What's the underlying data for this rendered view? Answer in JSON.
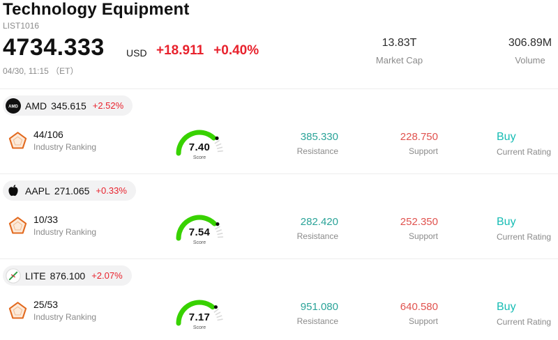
{
  "colors": {
    "red": "#e8222d",
    "support_red": "#e0524e",
    "resistance_teal": "#2aa398",
    "buy_teal": "#16bcb4",
    "gauge_green": "#38d200",
    "pentagon_orange": "#e2691e",
    "label_gray": "#8a8a8a"
  },
  "header": {
    "title": "Technology Equipment",
    "list_id": "LIST1016",
    "price": "4734.333",
    "currency": "USD",
    "change": "+18.911",
    "change_pct": "+0.40%",
    "datetime": "04/30, 11:15 （ET）",
    "market_cap_value": "13.83T",
    "market_cap_label": "Market Cap",
    "volume_value": "306.89M",
    "volume_label": "Volume"
  },
  "stocks": [
    {
      "logo": "amd-logo",
      "ticker": "AMD",
      "price": "345.615",
      "change_pct": "+2.52%",
      "ranking": "44/106",
      "ranking_label": "Industry Ranking",
      "score": 7.4,
      "score_display": "7.40",
      "score_label": "Score",
      "resistance": "385.330",
      "resistance_label": "Resistance",
      "support": "228.750",
      "support_label": "Support",
      "rating": "Buy",
      "rating_label": "Current Rating"
    },
    {
      "logo": "apple-logo",
      "ticker": "AAPL",
      "price": "271.065",
      "change_pct": "+0.33%",
      "ranking": "10/33",
      "ranking_label": "Industry Ranking",
      "score": 7.54,
      "score_display": "7.54",
      "score_label": "Score",
      "resistance": "282.420",
      "resistance_label": "Resistance",
      "support": "252.350",
      "support_label": "Support",
      "rating": "Buy",
      "rating_label": "Current Rating"
    },
    {
      "logo": "lite-logo",
      "ticker": "LITE",
      "price": "876.100",
      "change_pct": "+2.07%",
      "ranking": "25/53",
      "ranking_label": "Industry Ranking",
      "score": 7.17,
      "score_display": "7.17",
      "score_label": "Score",
      "resistance": "951.080",
      "resistance_label": "Resistance",
      "support": "640.580",
      "support_label": "Support",
      "rating": "Buy",
      "rating_label": "Current Rating"
    }
  ]
}
